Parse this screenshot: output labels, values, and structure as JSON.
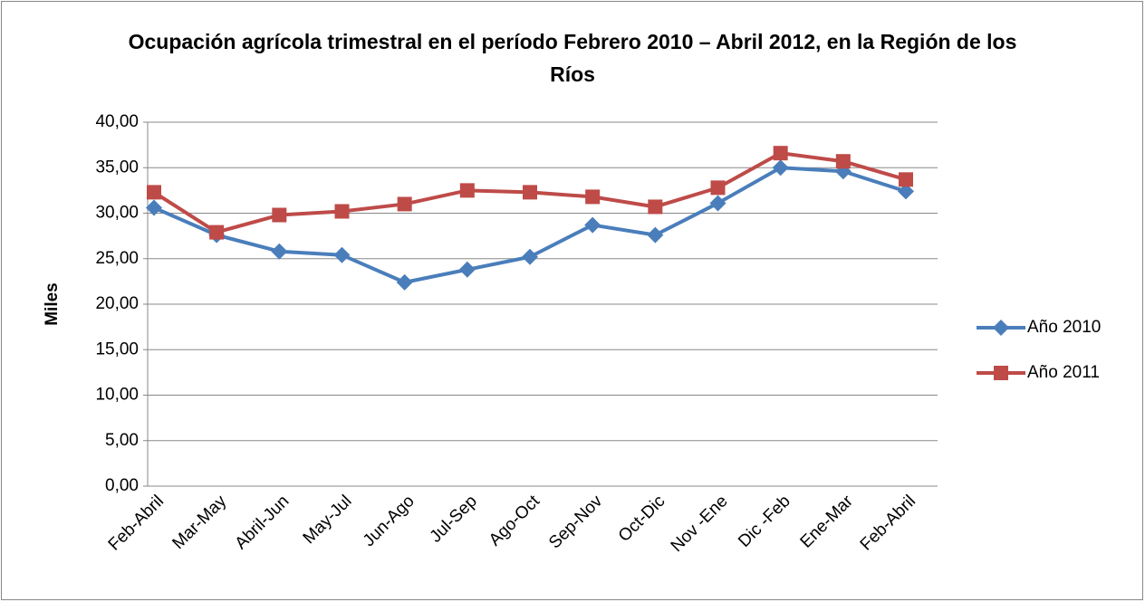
{
  "chart_data": {
    "type": "line",
    "title": "Ocupación agrícola trimestral en el período Febrero 2010 – Abril 2012, en la Región de los Ríos",
    "y_label": "Miles",
    "categories": [
      "Feb-Abril",
      "Mar-May",
      "Abril-Jun",
      "May-Jul",
      "Jun-Ago",
      "Jul-Sep",
      "Ago-Oct",
      "Sep-Nov",
      "Oct-Dic",
      "Nov -Ene",
      "Dic -Feb",
      "Ene-Mar",
      "Feb-Abril"
    ],
    "series": [
      {
        "name": "Año 2010",
        "color": "#4a7ebb",
        "marker": "diamond",
        "values": [
          30.6,
          27.6,
          25.8,
          25.4,
          22.4,
          23.8,
          25.2,
          28.7,
          27.6,
          31.1,
          35.0,
          34.6,
          32.4
        ]
      },
      {
        "name": "Año 2011",
        "color": "#be4b48",
        "marker": "square",
        "values": [
          32.3,
          27.9,
          29.8,
          30.2,
          31.0,
          32.5,
          32.3,
          31.8,
          30.7,
          32.8,
          36.6,
          35.7,
          33.7
        ]
      }
    ],
    "ylim": [
      0,
      40
    ],
    "yticks": [
      {
        "value": 0,
        "label": "0,00"
      },
      {
        "value": 5,
        "label": "5,00"
      },
      {
        "value": 10,
        "label": "10,00"
      },
      {
        "value": 15,
        "label": "15,00"
      },
      {
        "value": 20,
        "label": "20,00"
      },
      {
        "value": 25,
        "label": "25,00"
      },
      {
        "value": 30,
        "label": "30,00"
      },
      {
        "value": 35,
        "label": "35,00"
      },
      {
        "value": 40,
        "label": "40,00"
      }
    ],
    "grid": true,
    "legend": "right"
  }
}
